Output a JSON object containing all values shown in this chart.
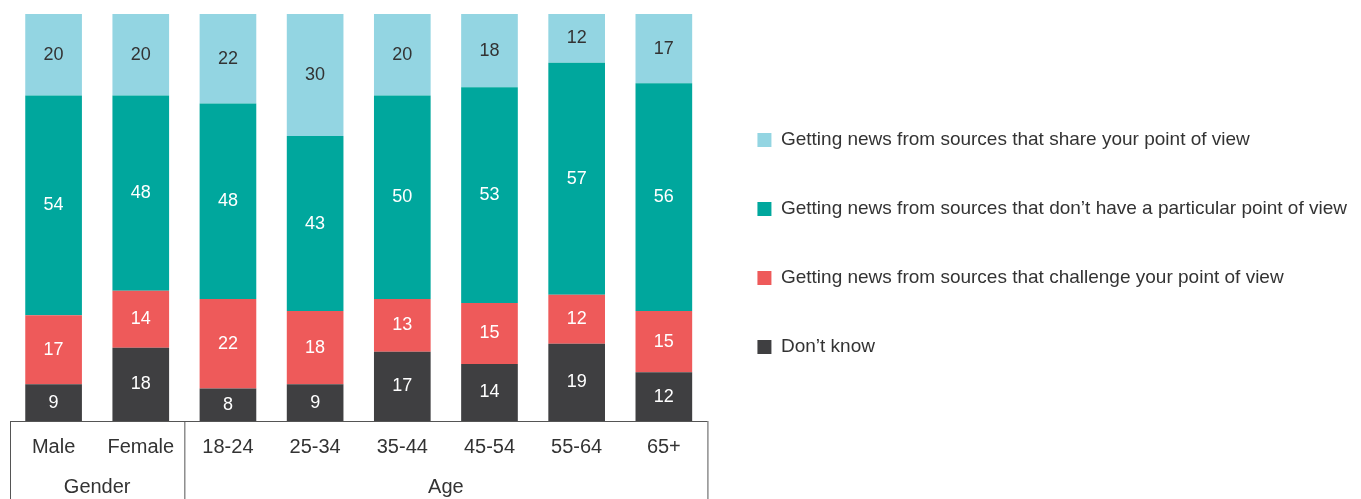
{
  "chart_data": {
    "type": "bar",
    "stacked": true,
    "categories": [
      "Male",
      "Female",
      "18-24",
      "25-34",
      "35-44",
      "45-54",
      "55-64",
      "65+"
    ],
    "series": [
      {
        "name": "Don’t know",
        "color": "#3f3f41",
        "values": [
          9,
          18,
          8,
          9,
          17,
          14,
          19,
          12
        ]
      },
      {
        "name": "Getting news from sources that challenge your point of view",
        "color": "#ee5a5a",
        "values": [
          17,
          14,
          22,
          18,
          13,
          15,
          12,
          15
        ]
      },
      {
        "name": "Getting news from sources that don’t have a particular point of view",
        "color": "#00a79d",
        "values": [
          54,
          48,
          48,
          43,
          50,
          53,
          57,
          56
        ]
      },
      {
        "name": "Getting news from sources that share your point of view",
        "color": "#93d5e2",
        "values": [
          20,
          20,
          22,
          30,
          20,
          18,
          12,
          17
        ]
      }
    ],
    "ylim": [
      0,
      100
    ],
    "tick_labels": "x",
    "grid": false,
    "legend": "right",
    "data_labels": true,
    "annotations": [
      "Gender",
      "Age"
    ]
  }
}
